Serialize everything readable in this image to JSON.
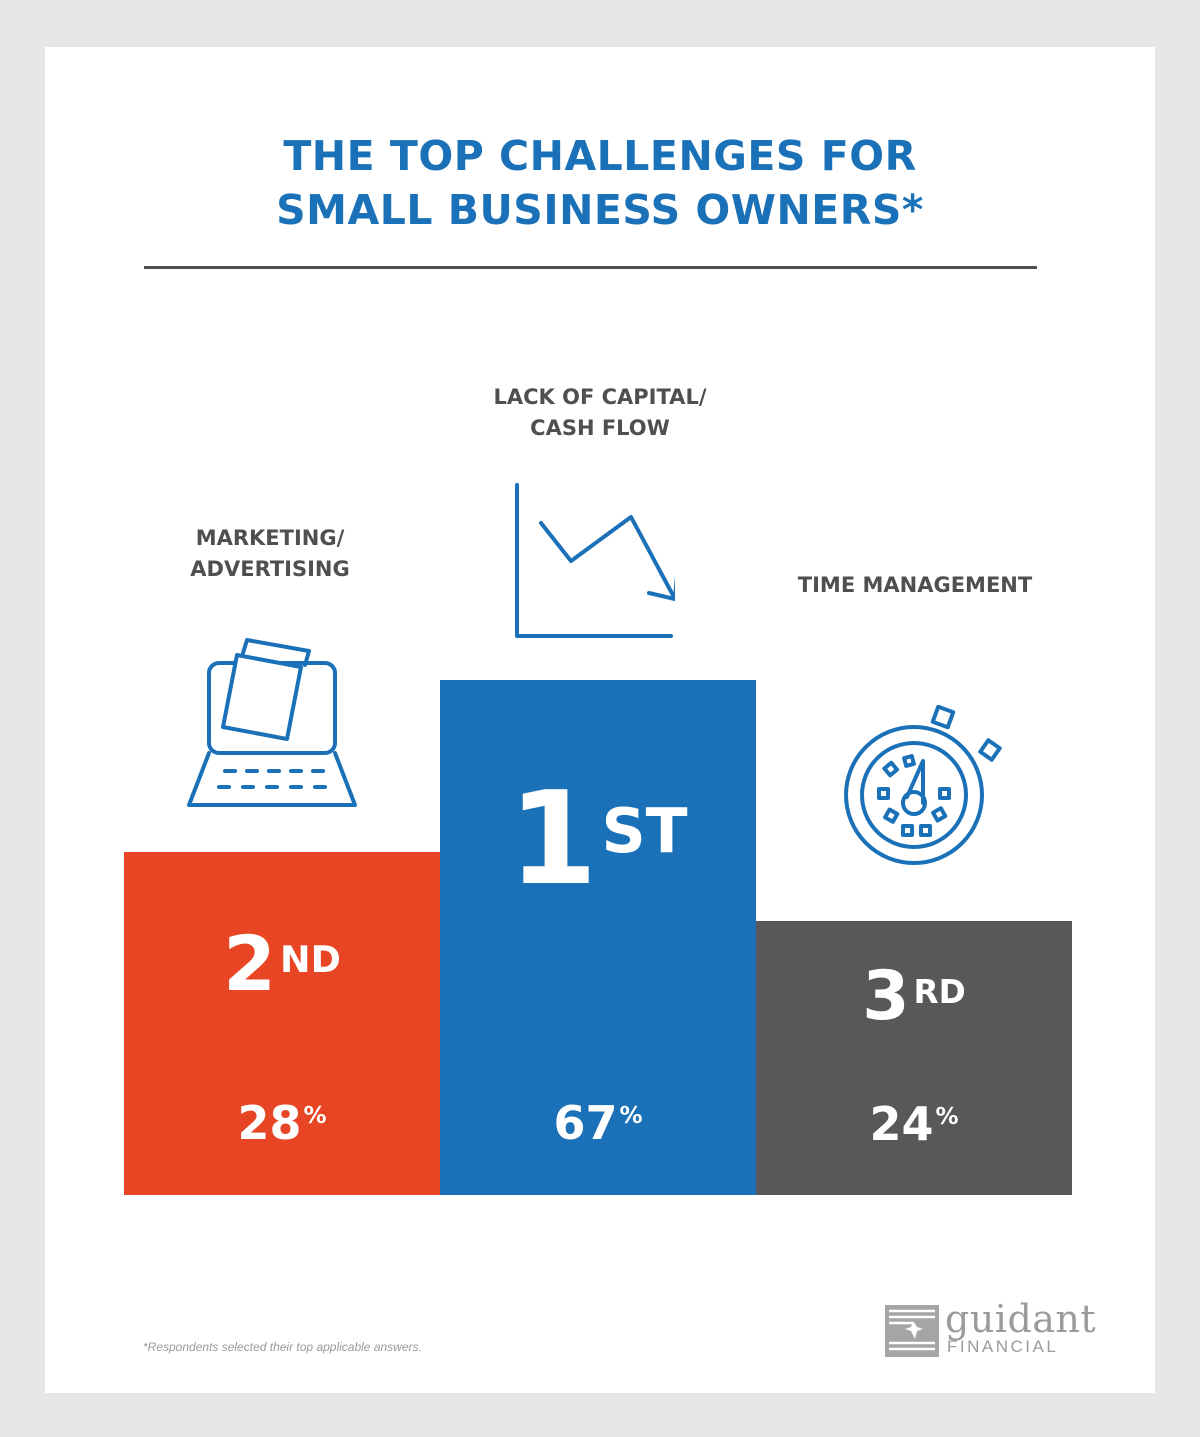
{
  "title_line1": "THE TOP CHALLENGES FOR",
  "title_line2": "SMALL BUSINESS OWNERS*",
  "chart_data": {
    "type": "bar",
    "categories": [
      "MARKETING/ ADVERTISING",
      "LACK OF CAPITAL/ CASH FLOW",
      "TIME MANAGEMENT"
    ],
    "values": [
      28,
      67,
      24
    ],
    "unit": "%",
    "ranks": [
      "2ND",
      "1ST",
      "3RD"
    ]
  },
  "podium": {
    "second": {
      "label1": "MARKETING/",
      "label2": "ADVERTISING",
      "rank_num": "2",
      "rank_suffix": "ND",
      "pct_num": "28",
      "pct_sign": "%",
      "color": "#e84524"
    },
    "first": {
      "label1": "LACK OF CAPITAL/",
      "label2": "CASH FLOW",
      "rank_num": "1",
      "rank_suffix": "ST",
      "pct_num": "67",
      "pct_sign": "%",
      "color": "#1a71b8"
    },
    "third": {
      "label1": "TIME MANAGEMENT",
      "rank_num": "3",
      "rank_suffix": "RD",
      "pct_num": "24",
      "pct_sign": "%",
      "color": "#58585a"
    }
  },
  "icons": {
    "second": "laptop-icon",
    "first": "declining-chart-icon",
    "third": "stopwatch-icon"
  },
  "footnote": "*Respondents selected their top applicable answers.",
  "logo": {
    "word1": "guidant",
    "word2": "FINANCIAL"
  }
}
